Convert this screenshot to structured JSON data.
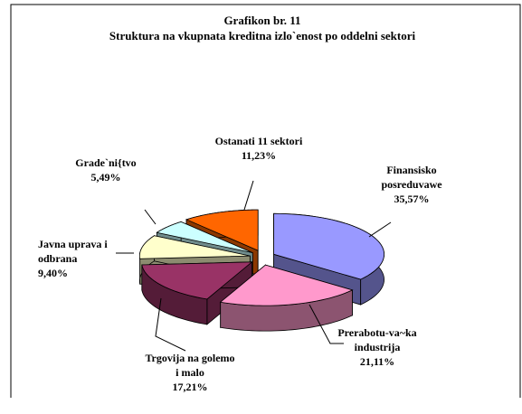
{
  "chart_data": {
    "type": "pie",
    "title": "Grafikon br. 11",
    "subtitle": "Struktura na vkupnata kreditna izlo`enost po oddelni sektori",
    "categories": [
      "Finansisko posreduvawe",
      "Prerabotu-va~ka industrija",
      "Trgovija na golemo i malo",
      "Javna uprava i odbrana",
      "Grade`ni{tvo",
      "Ostanati 11 sektori"
    ],
    "values": [
      35.57,
      21.11,
      17.21,
      9.4,
      5.49,
      11.23
    ],
    "value_labels": [
      "35,57%",
      "21,11%",
      "17,21%",
      "9,40%",
      "5,49%",
      "11,23%"
    ],
    "colors": [
      "#9999ff",
      "#ff99cc",
      "#993366",
      "#ffffcc",
      "#ccffff",
      "#ff6600"
    ]
  }
}
